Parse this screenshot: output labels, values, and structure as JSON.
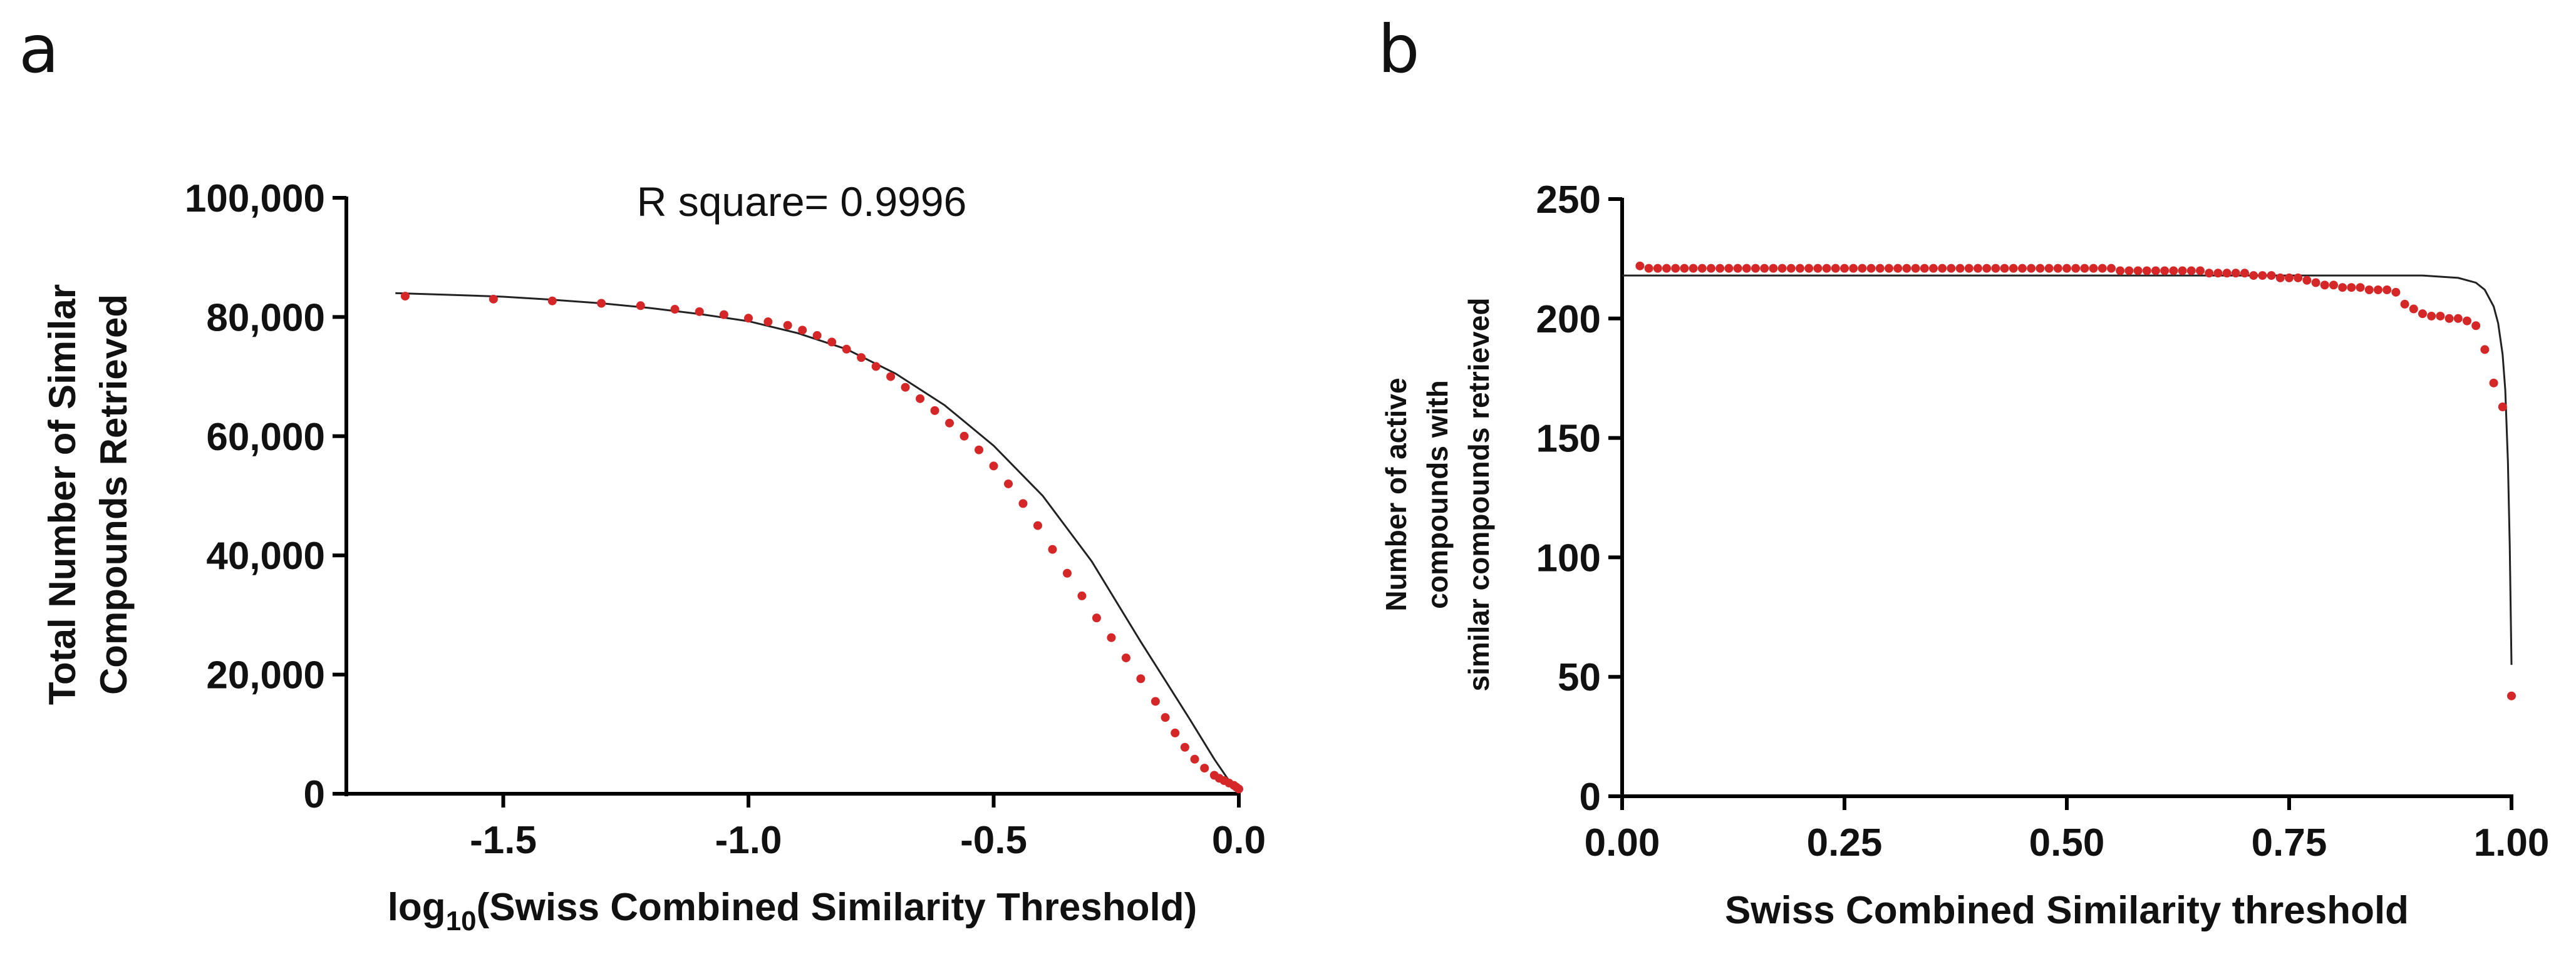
{
  "figure": {
    "panels": [
      {
        "letter": "a"
      },
      {
        "letter": "b"
      }
    ]
  },
  "colors": {
    "points": "#d62728",
    "fit_line": "#222222",
    "axes": "#000000"
  },
  "chart_data": [
    {
      "type": "scatter",
      "panel": "a",
      "annotation": "R square= 0.9996",
      "xlabel_prefix": "log",
      "xlabel_subscript": "10",
      "xlabel_rest": "(Swiss Combined Similarity Threshold)",
      "ylabel_lines": [
        "Total Number of Similar",
        "Compounds Retrieved"
      ],
      "xlim": [
        -1.82,
        0.0
      ],
      "ylim": [
        0,
        100000
      ],
      "xticks": [
        -1.5,
        -1.0,
        -0.5,
        0.0
      ],
      "xtick_labels": [
        "-1.5",
        "-1.0",
        "-0.5",
        "0.0"
      ],
      "yticks": [
        0,
        20000,
        40000,
        60000,
        80000,
        100000
      ],
      "ytick_labels": [
        "0",
        "20,000",
        "40,000",
        "60,000",
        "80,000",
        "100,000"
      ],
      "grid": false,
      "series": [
        {
          "kind": "points",
          "x": [
            -1.7,
            -1.52,
            -1.4,
            -1.3,
            -1.22,
            -1.15,
            -1.1,
            -1.05,
            -1.0,
            -0.96,
            -0.92,
            -0.89,
            -0.86,
            -0.83,
            -0.8,
            -0.77,
            -0.74,
            -0.71,
            -0.68,
            -0.65,
            -0.62,
            -0.59,
            -0.56,
            -0.53,
            -0.5,
            -0.47,
            -0.44,
            -0.41,
            -0.38,
            -0.35,
            -0.32,
            -0.29,
            -0.26,
            -0.23,
            -0.2,
            -0.17,
            -0.15,
            -0.13,
            -0.11,
            -0.09,
            -0.07,
            -0.05,
            -0.04,
            -0.03,
            -0.02,
            -0.01,
            -0.005,
            0.0
          ],
          "y": [
            83500,
            83000,
            82700,
            82300,
            81900,
            81300,
            80900,
            80400,
            79800,
            79200,
            78600,
            77800,
            76900,
            75800,
            74600,
            73200,
            71700,
            70000,
            68200,
            66300,
            64300,
            62200,
            60000,
            57700,
            55000,
            52000,
            48700,
            45000,
            41000,
            37000,
            33200,
            29500,
            26200,
            22800,
            19300,
            15500,
            12800,
            10200,
            7800,
            5800,
            4300,
            3100,
            2600,
            2200,
            1800,
            1400,
            1100,
            800
          ]
        },
        {
          "kind": "fit_line",
          "x": [
            -1.72,
            -1.6,
            -1.5,
            -1.4,
            -1.3,
            -1.2,
            -1.1,
            -1.0,
            -0.9,
            -0.8,
            -0.7,
            -0.6,
            -0.5,
            -0.4,
            -0.3,
            -0.2,
            -0.15,
            -0.1,
            -0.05,
            -0.02,
            0.0
          ],
          "y": [
            84000,
            83700,
            83400,
            82900,
            82300,
            81500,
            80500,
            79300,
            77300,
            74600,
            70500,
            65200,
            58400,
            50000,
            39000,
            25500,
            19000,
            12500,
            5800,
            2200,
            400
          ]
        }
      ]
    },
    {
      "type": "scatter",
      "panel": "b",
      "xlabel": "Swiss Combined Similarity threshold",
      "ylabel_lines": [
        "Number of active",
        "compounds with",
        "similar compounds retrieved"
      ],
      "xlim": [
        0.0,
        1.0
      ],
      "ylim": [
        0,
        250
      ],
      "xticks": [
        0.0,
        0.25,
        0.5,
        0.75,
        1.0
      ],
      "xtick_labels": [
        "0.00",
        "0.25",
        "0.50",
        "0.75",
        "1.00"
      ],
      "yticks": [
        0,
        50,
        100,
        150,
        200,
        250
      ],
      "ytick_labels": [
        "0",
        "50",
        "100",
        "150",
        "200",
        "250"
      ],
      "grid": false,
      "series": [
        {
          "kind": "points",
          "x": [
            0.02,
            0.03,
            0.04,
            0.05,
            0.06,
            0.07,
            0.08,
            0.09,
            0.1,
            0.11,
            0.12,
            0.13,
            0.14,
            0.15,
            0.16,
            0.17,
            0.18,
            0.19,
            0.2,
            0.21,
            0.22,
            0.23,
            0.24,
            0.25,
            0.26,
            0.27,
            0.28,
            0.29,
            0.3,
            0.31,
            0.32,
            0.33,
            0.34,
            0.35,
            0.36,
            0.37,
            0.38,
            0.39,
            0.4,
            0.41,
            0.42,
            0.43,
            0.44,
            0.45,
            0.46,
            0.47,
            0.48,
            0.49,
            0.5,
            0.51,
            0.52,
            0.53,
            0.54,
            0.55,
            0.56,
            0.57,
            0.58,
            0.59,
            0.6,
            0.61,
            0.62,
            0.63,
            0.64,
            0.65,
            0.66,
            0.67,
            0.68,
            0.69,
            0.7,
            0.71,
            0.72,
            0.73,
            0.74,
            0.75,
            0.76,
            0.77,
            0.78,
            0.79,
            0.8,
            0.81,
            0.82,
            0.83,
            0.84,
            0.85,
            0.86,
            0.87,
            0.88,
            0.89,
            0.9,
            0.91,
            0.92,
            0.93,
            0.94,
            0.95,
            0.96,
            0.97,
            0.98,
            0.99,
            1.0
          ],
          "y": [
            222,
            221,
            221,
            221,
            221,
            221,
            221,
            221,
            221,
            221,
            221,
            221,
            221,
            221,
            221,
            221,
            221,
            221,
            221,
            221,
            221,
            221,
            221,
            221,
            221,
            221,
            221,
            221,
            221,
            221,
            221,
            221,
            221,
            221,
            221,
            221,
            221,
            221,
            221,
            221,
            221,
            221,
            221,
            221,
            221,
            221,
            221,
            221,
            221,
            221,
            221,
            221,
            221,
            221,
            220,
            220,
            220,
            220,
            220,
            220,
            220,
            220,
            220,
            220,
            219,
            219,
            219,
            219,
            219,
            218,
            218,
            218,
            217,
            217,
            217,
            216,
            215,
            214,
            214,
            213,
            213,
            213,
            212,
            212,
            212,
            211,
            206,
            204,
            202,
            201,
            201,
            200,
            200,
            199,
            197,
            187,
            173,
            163,
            42
          ]
        },
        {
          "kind": "fit_line",
          "x": [
            0.0,
            0.2,
            0.4,
            0.6,
            0.8,
            0.9,
            0.94,
            0.96,
            0.97,
            0.98,
            0.985,
            0.99,
            0.993,
            0.996,
            0.998,
            1.0
          ],
          "y": [
            218,
            218,
            218,
            218,
            218,
            218,
            217,
            215,
            212,
            205,
            198,
            185,
            170,
            140,
            105,
            55
          ]
        }
      ]
    }
  ]
}
